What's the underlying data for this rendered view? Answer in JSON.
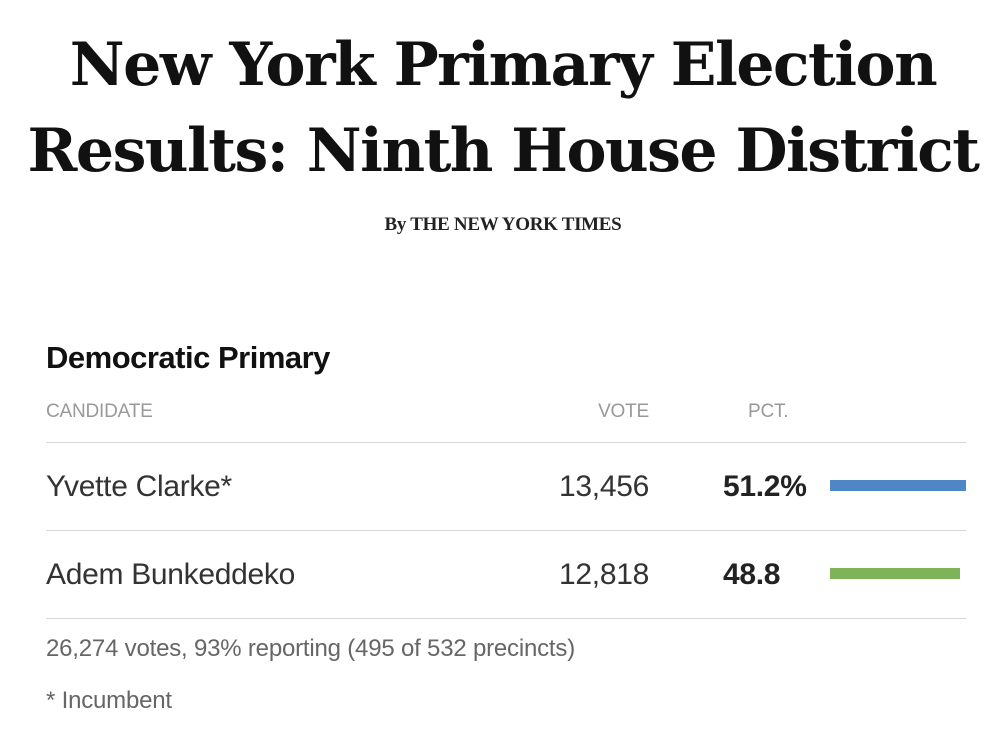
{
  "headline": {
    "line1": "New York Primary Election",
    "line2": "Results: Ninth House District"
  },
  "byline": {
    "prefix": "By",
    "author": "THE NEW YORK TIMES"
  },
  "section": {
    "title": "Democratic Primary"
  },
  "table": {
    "columns": {
      "candidate": "CANDIDATE",
      "vote": "VOTE",
      "pct": "PCT."
    },
    "rows": [
      {
        "name": "Yvette Clarke*",
        "vote": "13,456",
        "pct": "51.2%",
        "share": 51.2,
        "color": "#4f86c6"
      },
      {
        "name": "Adem Bunkeddeko",
        "vote": "12,818",
        "pct": "48.8",
        "share": 48.8,
        "color": "#7fb35a"
      }
    ]
  },
  "footer": {
    "summary": "26,274 votes, 93% reporting (495 of 532 precincts)",
    "incumbent_note": "* Incumbent"
  }
}
